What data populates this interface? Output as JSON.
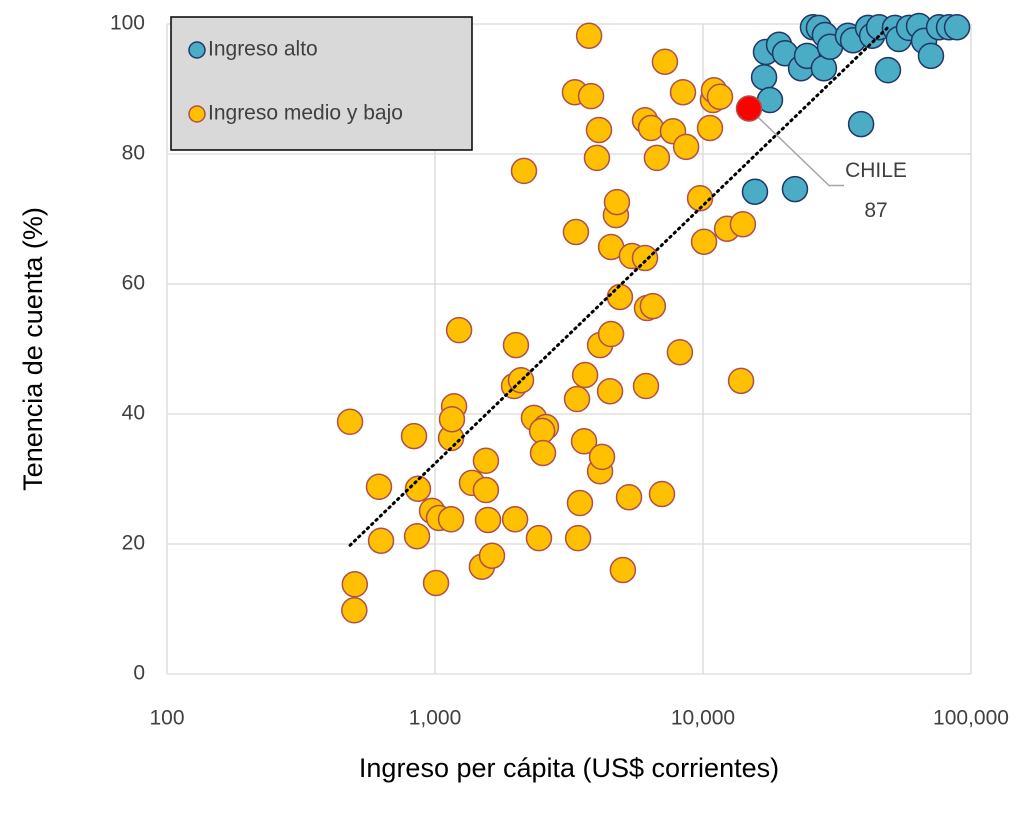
{
  "chart_data": {
    "type": "scatter",
    "x_label": "Ingreso per cápita (US$ corrientes)",
    "y_label": "Tenencia de cuenta (%)",
    "xscale": "log",
    "xlim": [
      100,
      100000
    ],
    "xticks": [
      100,
      {
        "value": 1000,
        "label": "1,000"
      },
      {
        "value": 10000,
        "label": "10,000"
      },
      {
        "value": 100000,
        "label": "100,000"
      }
    ],
    "ylim": [
      0,
      100
    ],
    "yticks": [
      0,
      20,
      40,
      60,
      80,
      100
    ],
    "grid": true,
    "legend": "top-left",
    "series": [
      {
        "name": "Ingreso alto",
        "color": "#4bacc6",
        "edge_color": "#1f3864",
        "x": [
          15630,
          16900,
          17180,
          17780,
          19220,
          20240,
          22040,
          23220,
          24450,
          25720,
          27080,
          28500,
          28260,
          29790,
          34750,
          36300,
          38900,
          41300,
          42750,
          45400,
          49000,
          52000,
          53800,
          58700,
          64000,
          66800,
          70900,
          76000,
          82800,
          88700
        ],
        "values": [
          74.2,
          91.8,
          95.7,
          88.3,
          96.8,
          95.5,
          74.6,
          93.2,
          95.1,
          99.5,
          99.4,
          98.3,
          93.2,
          96.5,
          98.2,
          97.5,
          84.6,
          99.4,
          98.2,
          99.5,
          92.9,
          99.4,
          97.7,
          99.4,
          99.7,
          97.4,
          95.1,
          99.5,
          99.5,
          99.5
        ]
      },
      {
        "name": "Ingreso medio y bajo",
        "color": "#ffc000",
        "edge_color": "#b0504a",
        "x": [
          482,
          502,
          500,
          618,
          629,
          835,
          864,
          857,
          975,
          1035,
          1009,
          1148,
          1148,
          1178,
          1157,
          1230,
          1374,
          1549,
          1549,
          1577,
          1496,
          1632,
          1990,
          2005,
          1972,
          2094,
          2148,
          2340,
          2594,
          2510,
          2529,
          2443,
          3357,
          3388,
          3327,
          3475,
          3420,
          3598,
          3631,
          3758,
          3822,
          4020,
          4092,
          4130,
          4200,
          4130,
          4540,
          4500,
          4540,
          4733,
          4775,
          4898,
          5024,
          5296,
          5430,
          6075,
          6180,
          6128,
          6075,
          6500,
          6400,
          6730,
          7030,
          7211,
          7727,
          8200,
          8420,
          8650,
          9750,
          10090,
          10620,
          10890,
          10990,
          11570,
          12300,
          13870,
          14090
        ],
        "values": [
          38.8,
          13.8,
          9.8,
          28.8,
          20.5,
          36.6,
          28.5,
          21.2,
          25.1,
          24,
          14,
          23.8,
          36.3,
          41.2,
          39.2,
          52.9,
          29.4,
          32.8,
          28.3,
          23.7,
          16.5,
          18.2,
          23.8,
          50.6,
          44.3,
          45.2,
          77.4,
          39.4,
          38,
          37.4,
          34,
          20.9,
          68,
          42.3,
          89.5,
          26.3,
          20.9,
          35.8,
          46,
          98.2,
          88.9,
          79.4,
          83.7,
          31.2,
          33.4,
          50.6,
          52.3,
          43.5,
          65.7,
          70.6,
          72.6,
          58,
          16,
          27.2,
          64.3,
          85.2,
          56.3,
          44.3,
          64,
          56.6,
          84,
          79.4,
          27.7,
          94.2,
          83.5,
          49.5,
          89.5,
          81.1,
          73.2,
          66.5,
          84,
          88.3,
          89.8,
          88.8,
          68.5,
          45.1,
          69.2
        ]
      }
    ],
    "highlight": {
      "label": "CHILE",
      "x": 14850,
      "value": 87,
      "color": "#ff0000",
      "edge_color": "#b0504a"
    },
    "trendline": {
      "x": [
        482,
        49900
      ],
      "values": [
        19.8,
        99.8
      ],
      "color": "#000000"
    }
  }
}
